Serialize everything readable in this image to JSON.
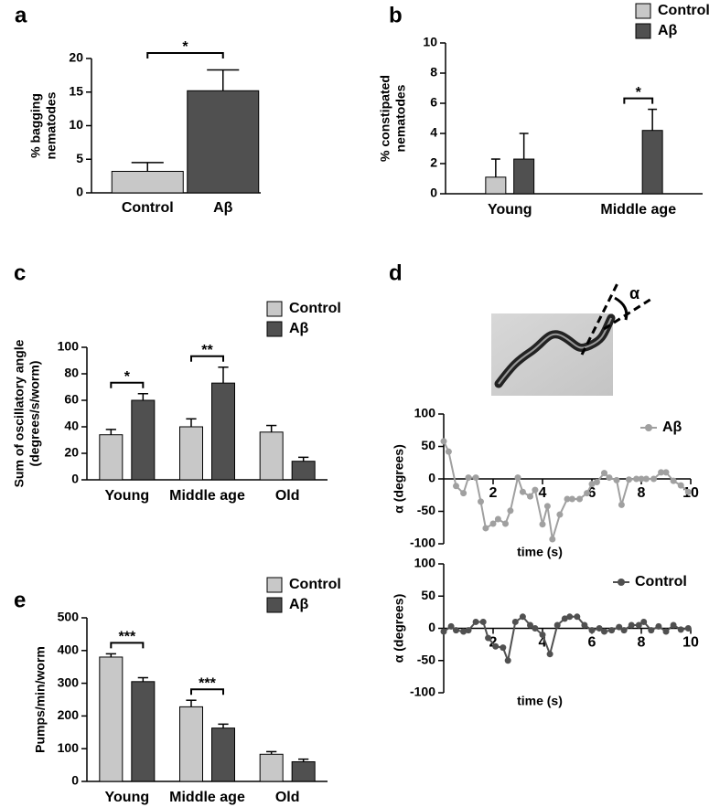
{
  "chart_data": [
    {
      "type": "bar",
      "label": "a",
      "ylabel": [
        "% bagging",
        "nematodes"
      ],
      "categories": [
        "Control",
        "Aβ"
      ],
      "values": [
        3.2,
        15.2
      ],
      "errors": [
        1.3,
        3.1
      ],
      "colors": [
        "#c8c8c8",
        "#505050"
      ],
      "ylim": [
        0,
        20
      ],
      "yticks": [
        0,
        5,
        10,
        15,
        20
      ],
      "annotation": "*"
    },
    {
      "type": "grouped_bar",
      "label": "b",
      "ylabel": [
        "% constipated",
        "nematodes"
      ],
      "categories": [
        "Young",
        "Middle age"
      ],
      "series": [
        {
          "name": "Control",
          "color": "#c8c8c8",
          "values": [
            1.1,
            0
          ],
          "errors": [
            1.2,
            0
          ]
        },
        {
          "name": "Aβ",
          "color": "#505050",
          "values": [
            2.3,
            4.2
          ],
          "errors": [
            1.7,
            1.4
          ]
        }
      ],
      "ylim": [
        0,
        10
      ],
      "yticks": [
        0,
        2,
        4,
        6,
        8,
        10
      ],
      "annotations": [
        null,
        "*"
      ],
      "legend": "top right"
    },
    {
      "type": "grouped_bar",
      "label": "c",
      "ylabel": [
        "Sum of oscillatory angle",
        "(degrees/s/worm)"
      ],
      "categories": [
        "Young",
        "Middle age",
        "Old"
      ],
      "series": [
        {
          "name": "Control",
          "color": "#c8c8c8",
          "values": [
            34,
            40,
            36
          ],
          "errors": [
            4,
            6,
            5
          ]
        },
        {
          "name": "Aβ",
          "color": "#505050",
          "values": [
            60,
            73,
            14
          ],
          "errors": [
            5,
            12,
            3
          ]
        }
      ],
      "ylim": [
        0,
        100
      ],
      "yticks": [
        0,
        20,
        40,
        60,
        80,
        100
      ],
      "annotations": [
        "*",
        "**",
        null
      ],
      "legend": "top right"
    },
    {
      "type": "line",
      "label": "d",
      "image_label": "α",
      "ylabel": "α (degrees)",
      "xlabel": "time (s)",
      "x": [
        0,
        0.2,
        0.5,
        0.8,
        1.0,
        1.3,
        1.5,
        1.7,
        2.0,
        2.2,
        2.5,
        2.7,
        3.0,
        3.2,
        3.5,
        3.7,
        4.0,
        4.2,
        4.4,
        4.7,
        5.0,
        5.2,
        5.5,
        5.8,
        6.0,
        6.2,
        6.5,
        6.7,
        7.0,
        7.2,
        7.5,
        7.8,
        8.0,
        8.2,
        8.5,
        8.8,
        9.0,
        9.3,
        9.6,
        9.9
      ],
      "series": [
        {
          "name": "Aβ",
          "color": "#a0a0a0",
          "values": [
            58,
            42,
            -11,
            -22,
            2,
            2,
            -35,
            -76,
            -69,
            -62,
            -69,
            -49,
            2,
            -20,
            -27,
            -17,
            -70,
            -42,
            -93,
            -55,
            -31,
            -31,
            -31,
            -22,
            -8,
            -5,
            9,
            2,
            -2,
            -40,
            -1,
            0,
            0,
            0,
            0,
            10,
            10,
            -3,
            -10,
            -20
          ]
        }
      ],
      "xlim": [
        0,
        10
      ],
      "xticks": [
        2,
        4,
        6,
        8,
        10
      ],
      "ylim": [
        -100,
        100
      ],
      "yticks": [
        -100,
        -50,
        0,
        50,
        100
      ]
    },
    {
      "type": "line",
      "ylabel": "α (degrees)",
      "xlabel": "time (s)",
      "x": [
        0,
        0.3,
        0.5,
        0.8,
        1.0,
        1.3,
        1.6,
        1.8,
        2.1,
        2.4,
        2.6,
        2.9,
        3.2,
        3.5,
        3.7,
        4.0,
        4.3,
        4.6,
        4.9,
        5.1,
        5.4,
        5.7,
        6.0,
        6.3,
        6.5,
        6.8,
        7.1,
        7.3,
        7.6,
        7.9,
        8.1,
        8.4,
        8.7,
        9.0,
        9.3,
        9.6,
        9.9
      ],
      "series": [
        {
          "name": "Control",
          "color": "#505050",
          "values": [
            -5,
            3,
            -3,
            -5,
            -3,
            10,
            10,
            -15,
            -28,
            -30,
            -50,
            10,
            18,
            5,
            0,
            -10,
            -40,
            5,
            15,
            18,
            18,
            5,
            -3,
            0,
            -5,
            -3,
            2,
            -3,
            5,
            5,
            10,
            -3,
            3,
            -5,
            5,
            -2,
            0
          ]
        }
      ],
      "xlim": [
        0,
        10
      ],
      "xticks": [
        2,
        4,
        6,
        8,
        10
      ],
      "ylim": [
        -100,
        100
      ],
      "yticks": [
        -100,
        -50,
        0,
        50,
        100
      ]
    },
    {
      "type": "grouped_bar",
      "label": "e",
      "ylabel": "Pumps/min/worm",
      "categories": [
        "Young",
        "Middle age",
        "Old"
      ],
      "series": [
        {
          "name": "Control",
          "color": "#c8c8c8",
          "values": [
            380,
            228,
            83
          ],
          "errors": [
            10,
            20,
            8
          ]
        },
        {
          "name": "Aβ",
          "color": "#505050",
          "values": [
            305,
            163,
            60
          ],
          "errors": [
            12,
            12,
            8
          ]
        }
      ],
      "ylim": [
        0,
        500
      ],
      "yticks": [
        0,
        100,
        200,
        300,
        400,
        500
      ],
      "annotations": [
        "***",
        "***",
        null
      ],
      "legend": "top right"
    }
  ]
}
